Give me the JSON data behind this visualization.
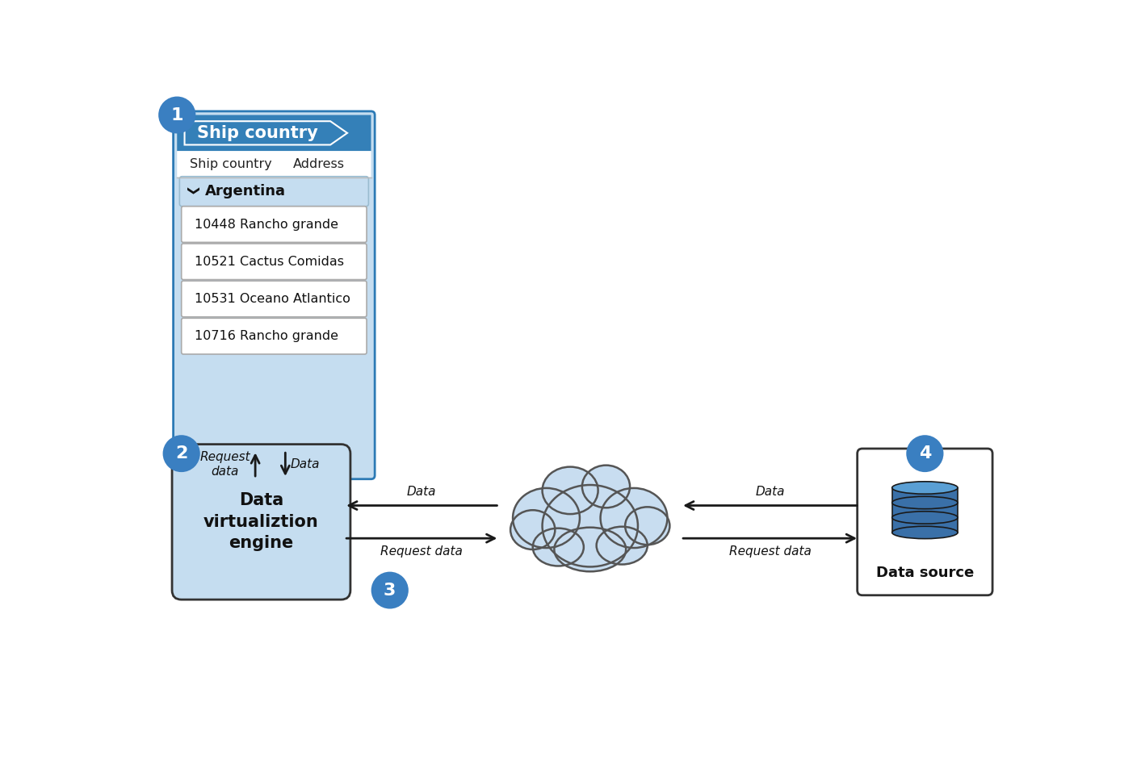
{
  "bg_color": "#ffffff",
  "blue_dark": "#2c7ab5",
  "blue_mid": "#4a90c4",
  "blue_light": "#c5ddf0",
  "blue_circle": "#3a7fc1",
  "table_header_bg": "#3480b8",
  "table_sub_bg": "#c5ddf0",
  "arrow_color": "#1a1a1a",
  "circle_text": "#ffffff",
  "rows": [
    "10448 Rancho grande",
    "10521 Cactus Comidas",
    "10531 Oceano Atlantico",
    "10716 Rancho grande"
  ],
  "header_label": "Ship country",
  "col_labels": [
    "Ship country",
    "Address"
  ],
  "node2_label": "Data\nvirtualiztion\nengine",
  "node4_label": "Data source"
}
